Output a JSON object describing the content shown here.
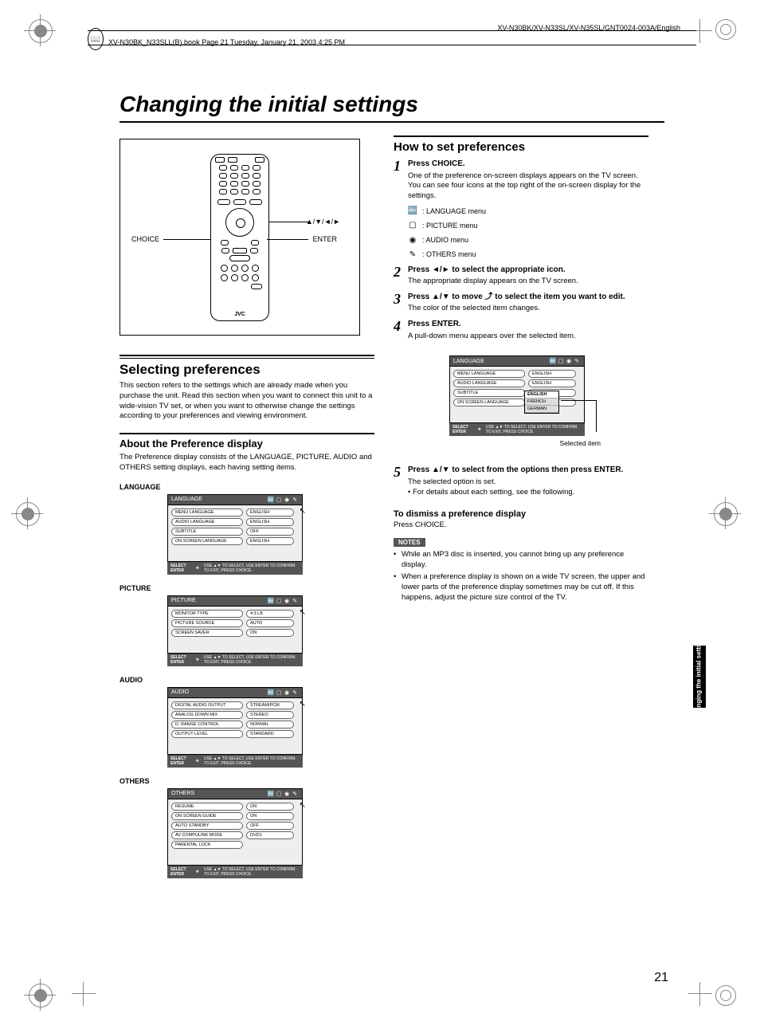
{
  "header": {
    "path": "XV-N30BK_N33SLL(B).book  Page 21  Tuesday, January 21, 2003  4:25 PM",
    "model_line": "XV-N30BK/XV-N33SL/XV-N35SL/GNT0024-003A/English"
  },
  "title": "Changing the initial settings",
  "remote": {
    "choice_label": "CHOICE",
    "enter_label": "ENTER",
    "arrows_label": "▲/▼/◄/►",
    "logo": "JVC"
  },
  "left": {
    "sec1_title": "Selecting preferences",
    "sec1_body": "This section refers to the settings which are already made when you purchase the unit. Read this section when you want to connect this unit to a wide-vision TV set, or when you want to otherwise change the settings according to your preferences and viewing environment.",
    "sec2_title": "About the Preference display",
    "sec2_body": "The Preference display consists of the LANGUAGE, PICTURE, AUDIO and OTHERS setting displays, each having setting items.",
    "footer_hint": "USE ▲▼ TO SELECT, USE ENTER TO CONFIRM. TO EXIT, PRESS CHOICE.",
    "select_label": "SELECT ENTER",
    "menus": {
      "language": {
        "label": "LANGUAGE",
        "rows": [
          [
            "MENU LANGUAGE",
            "ENGLISH"
          ],
          [
            "AUDIO LANGUAGE",
            "ENGLISH"
          ],
          [
            "SUBTITLE",
            "OFF"
          ],
          [
            "ON SCREEN LANGUAGE",
            "ENGLISH"
          ]
        ]
      },
      "picture": {
        "label": "PICTURE",
        "rows": [
          [
            "MONITOR TYPE",
            "4:3 LB"
          ],
          [
            "PICTURE SOURCE",
            "AUTO"
          ],
          [
            "SCREEN SAVER",
            "ON"
          ]
        ]
      },
      "audio": {
        "label": "AUDIO",
        "rows": [
          [
            "DIGITAL AUDIO OUTPUT",
            "STREAM/PCM"
          ],
          [
            "ANALOG DOWN MIX",
            "STEREO"
          ],
          [
            "D. RANGE CONTROL",
            "NORMAL"
          ],
          [
            "OUTPUT LEVEL",
            "STANDARD"
          ]
        ]
      },
      "others": {
        "label": "OTHERS",
        "rows": [
          [
            "RESUME",
            "ON"
          ],
          [
            "ON SCREEN GUIDE",
            "ON"
          ],
          [
            "AUTO STANDBY",
            "OFF"
          ],
          [
            "AV COMPULINK MODE",
            "DVD1"
          ],
          [
            "PARENTAL LOCK",
            ""
          ]
        ]
      }
    }
  },
  "right": {
    "title": "How to set preferences",
    "steps": {
      "s1": {
        "head": "Press CHOICE.",
        "body1": "One of the preference on-screen displays appears on the TV screen.",
        "body2": "You can see four icons at the top right of the on-screen display for the settings.",
        "m1": ": LANGUAGE menu",
        "m2": ": PICTURE menu",
        "m3": ": AUDIO menu",
        "m4": ": OTHERS menu"
      },
      "s2": {
        "head": "Press ◄/► to select the appropriate icon.",
        "body": "The appropriate display appears on the TV screen."
      },
      "s3": {
        "head_a": "Press ▲/▼ to move ",
        "head_b": " to select the item you want to edit.",
        "body": "The color of the selected item changes."
      },
      "s4": {
        "head": "Press ENTER.",
        "body": "A pull-down menu appears over the selected item."
      },
      "s5": {
        "head": "Press ▲/▼ to select from the options then press ENTER.",
        "body1": "The selected option is set.",
        "body2": "• For details about each setting, see the following."
      }
    },
    "selected_menu": {
      "dropdown": [
        "ENGLISH",
        "FRENCH",
        "GERMAN"
      ],
      "caption": "Selected item"
    },
    "dismiss": {
      "title": "To dismiss a preference display",
      "body": "Press CHOICE."
    },
    "notes": {
      "label": "NOTES",
      "n1": "While an MP3 disc is inserted, you cannot bring up any preference display.",
      "n2": "When a preference display is shown on a wide TV screen, the upper and lower parts of the preference display sometimes may be cut off. If this happens, adjust the picture size control of the TV."
    }
  },
  "sidetab": "Changing the\ninitial settings",
  "page_number": "21"
}
